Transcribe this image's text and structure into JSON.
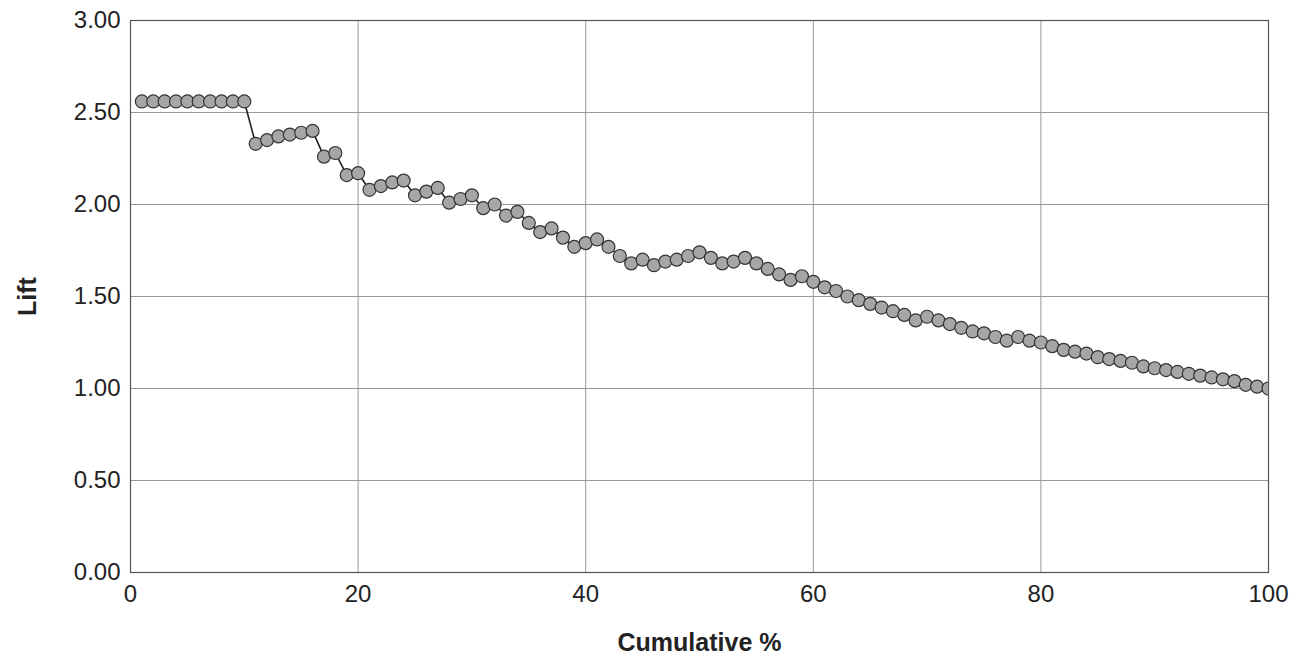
{
  "chart_data": {
    "type": "line",
    "x_label": "Cumulative %",
    "y_label": "Lift",
    "x": [
      1,
      2,
      3,
      4,
      5,
      6,
      7,
      8,
      9,
      10,
      11,
      12,
      13,
      14,
      15,
      16,
      17,
      18,
      19,
      20,
      21,
      22,
      23,
      24,
      25,
      26,
      27,
      28,
      29,
      30,
      31,
      32,
      33,
      34,
      35,
      36,
      37,
      38,
      39,
      40,
      41,
      42,
      43,
      44,
      45,
      46,
      47,
      48,
      49,
      50,
      51,
      52,
      53,
      54,
      55,
      56,
      57,
      58,
      59,
      60,
      61,
      62,
      63,
      64,
      65,
      66,
      67,
      68,
      69,
      70,
      71,
      72,
      73,
      74,
      75,
      76,
      77,
      78,
      79,
      80,
      81,
      82,
      83,
      84,
      85,
      86,
      87,
      88,
      89,
      90,
      91,
      92,
      93,
      94,
      95,
      96,
      97,
      98,
      99,
      100
    ],
    "series": [
      {
        "name": "Lift",
        "color": "#a6a6a6",
        "marker": "circle",
        "line_style": "solid",
        "values": [
          2.56,
          2.56,
          2.56,
          2.56,
          2.56,
          2.56,
          2.56,
          2.56,
          2.56,
          2.56,
          2.33,
          2.35,
          2.37,
          2.38,
          2.39,
          2.4,
          2.26,
          2.28,
          2.16,
          2.17,
          2.08,
          2.1,
          2.12,
          2.13,
          2.05,
          2.07,
          2.09,
          2.01,
          2.03,
          2.05,
          1.98,
          2.0,
          1.94,
          1.96,
          1.9,
          1.85,
          1.87,
          1.82,
          1.77,
          1.79,
          1.81,
          1.77,
          1.72,
          1.68,
          1.7,
          1.67,
          1.69,
          1.7,
          1.72,
          1.74,
          1.71,
          1.68,
          1.69,
          1.71,
          1.68,
          1.65,
          1.62,
          1.59,
          1.61,
          1.58,
          1.55,
          1.53,
          1.5,
          1.48,
          1.46,
          1.44,
          1.42,
          1.4,
          1.37,
          1.39,
          1.37,
          1.35,
          1.33,
          1.31,
          1.3,
          1.28,
          1.26,
          1.28,
          1.26,
          1.25,
          1.23,
          1.21,
          1.2,
          1.19,
          1.17,
          1.16,
          1.15,
          1.14,
          1.12,
          1.11,
          1.1,
          1.09,
          1.08,
          1.07,
          1.06,
          1.05,
          1.04,
          1.02,
          1.01,
          1.0
        ]
      }
    ],
    "xlim": [
      0,
      100
    ],
    "xticks": [
      0,
      20,
      40,
      60,
      80,
      100
    ],
    "ylim": [
      0,
      3
    ],
    "yticks": [
      {
        "value": 0,
        "label": "0.00"
      },
      {
        "value": 0.5,
        "label": "0.50"
      },
      {
        "value": 1,
        "label": "1.00"
      },
      {
        "value": 1.5,
        "label": "1.50"
      },
      {
        "value": 2,
        "label": "2.00"
      },
      {
        "value": 2.5,
        "label": "2.50"
      },
      {
        "value": 3,
        "label": "3.00"
      }
    ],
    "grid": true
  }
}
